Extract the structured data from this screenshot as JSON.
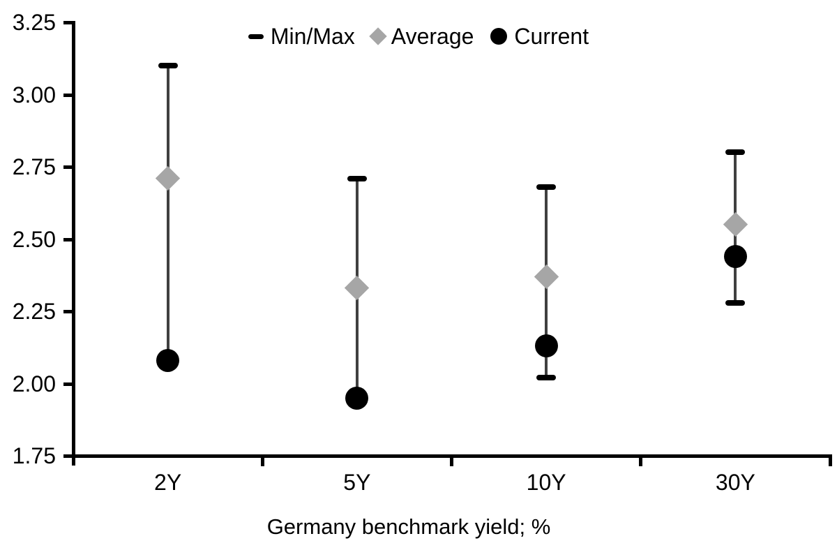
{
  "chart_data": {
    "type": "scatter",
    "subtype": "min-max-range-with-average-and-current",
    "title": "",
    "xlabel": "Germany benchmark yield; %",
    "ylabel": "",
    "categories": [
      "2Y",
      "5Y",
      "10Y",
      "30Y"
    ],
    "y_axis": {
      "min": 1.75,
      "max": 3.25,
      "step": 0.25,
      "tick_labels": [
        "3.25",
        "3.00",
        "2.75",
        "2.50",
        "2.25",
        "2.00",
        "1.75"
      ]
    },
    "legend": {
      "position": "top-center",
      "items": [
        {
          "label": "Min/Max",
          "marker": "dash"
        },
        {
          "label": "Average",
          "marker": "diamond"
        },
        {
          "label": "Current",
          "marker": "circle"
        }
      ]
    },
    "grid": false,
    "points": [
      {
        "category": "2Y",
        "max": 3.1,
        "min": 2.08,
        "average": 2.71,
        "current": 2.08,
        "min_cap_visible": false
      },
      {
        "category": "5Y",
        "max": 2.71,
        "min": 1.95,
        "average": 2.33,
        "current": 1.95,
        "min_cap_visible": false
      },
      {
        "category": "10Y",
        "max": 2.68,
        "min": 2.02,
        "average": 2.37,
        "current": 2.13,
        "min_cap_visible": true
      },
      {
        "category": "30Y",
        "max": 2.8,
        "min": 2.28,
        "average": 2.55,
        "current": 2.44,
        "min_cap_visible": true
      }
    ],
    "colors": {
      "range_line": "#404040",
      "cap": "#000000",
      "average_marker": "#a6a6a6",
      "current_marker": "#000000",
      "axis": "#000000",
      "text": "#000000",
      "background": "#ffffff"
    }
  }
}
